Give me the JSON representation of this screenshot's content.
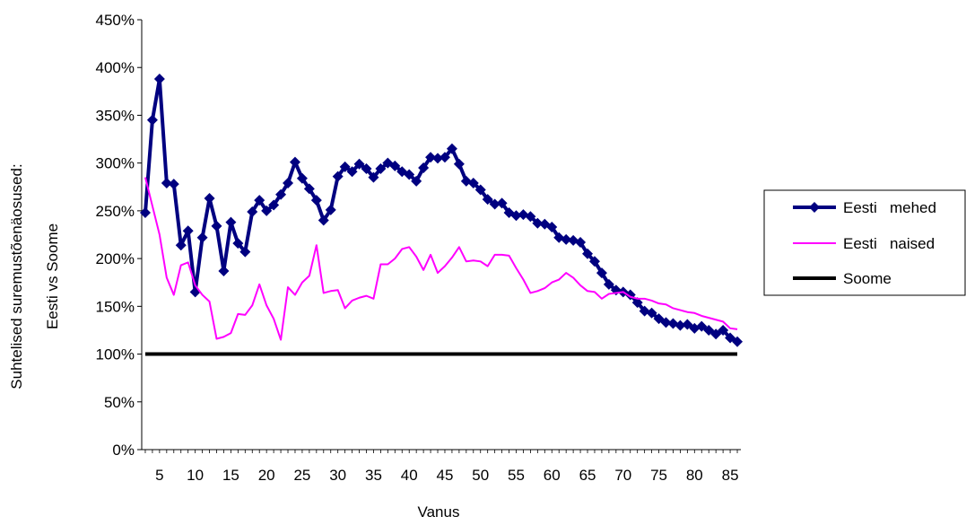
{
  "chart_data": {
    "type": "line",
    "xlabel": "Vanus",
    "ylabel_line1": "Suhtelised suremustõenäosused:",
    "ylabel_line2": "Eesti vs Soome",
    "x_ticks": [
      "5",
      "10",
      "15",
      "20",
      "25",
      "30",
      "35",
      "40",
      "45",
      "50",
      "55",
      "60",
      "65",
      "70",
      "75",
      "80",
      "85"
    ],
    "y_ticks": [
      "0%",
      "50%",
      "100%",
      "150%",
      "200%",
      "250%",
      "300%",
      "350%",
      "400%",
      "450%"
    ],
    "ylim": [
      0,
      4.5
    ],
    "xlim": [
      2.5,
      86.5
    ],
    "grid": false,
    "legend_position": "right",
    "x": [
      3,
      4,
      5,
      6,
      7,
      8,
      9,
      10,
      11,
      12,
      13,
      14,
      15,
      16,
      17,
      18,
      19,
      20,
      21,
      22,
      23,
      24,
      25,
      26,
      27,
      28,
      29,
      30,
      31,
      32,
      33,
      34,
      35,
      36,
      37,
      38,
      39,
      40,
      41,
      42,
      43,
      44,
      45,
      46,
      47,
      48,
      49,
      50,
      51,
      52,
      53,
      54,
      55,
      56,
      57,
      58,
      59,
      60,
      61,
      62,
      63,
      64,
      65,
      66,
      67,
      68,
      69,
      70,
      71,
      72,
      73,
      74,
      75,
      76,
      77,
      78,
      79,
      80,
      81,
      82,
      83,
      84,
      85,
      86
    ],
    "series": [
      {
        "name": "Eesti mehed",
        "color": "#000080",
        "marker": "diamond",
        "values": [
          2.48,
          3.45,
          3.88,
          2.79,
          2.78,
          2.14,
          2.29,
          1.65,
          2.22,
          2.63,
          2.34,
          1.87,
          2.38,
          2.16,
          2.07,
          2.49,
          2.61,
          2.5,
          2.56,
          2.67,
          2.79,
          3.01,
          2.84,
          2.73,
          2.61,
          2.4,
          2.51,
          2.86,
          2.96,
          2.91,
          2.99,
          2.94,
          2.85,
          2.94,
          3.0,
          2.97,
          2.91,
          2.88,
          2.81,
          2.95,
          3.06,
          3.05,
          3.06,
          3.15,
          2.99,
          2.81,
          2.79,
          2.72,
          2.62,
          2.57,
          2.58,
          2.48,
          2.45,
          2.46,
          2.44,
          2.37,
          2.36,
          2.33,
          2.22,
          2.2,
          2.19,
          2.17,
          2.05,
          1.97,
          1.85,
          1.73,
          1.67,
          1.65,
          1.62,
          1.54,
          1.45,
          1.43,
          1.37,
          1.33,
          1.32,
          1.3,
          1.31,
          1.27,
          1.29,
          1.25,
          1.21,
          1.25,
          1.17,
          1.13
        ]
      },
      {
        "name": "Eesti naised",
        "color": "#ff00ff",
        "marker": "none",
        "values": [
          2.85,
          2.55,
          2.25,
          1.8,
          1.62,
          1.93,
          1.96,
          1.72,
          1.62,
          1.55,
          1.16,
          1.18,
          1.22,
          1.42,
          1.41,
          1.51,
          1.73,
          1.51,
          1.37,
          1.15,
          1.7,
          1.62,
          1.75,
          1.82,
          2.14,
          1.64,
          1.66,
          1.67,
          1.48,
          1.56,
          1.59,
          1.61,
          1.58,
          1.94,
          1.94,
          2.0,
          2.1,
          2.12,
          2.02,
          1.88,
          2.04,
          1.85,
          1.92,
          2.01,
          2.12,
          1.97,
          1.98,
          1.97,
          1.92,
          2.04,
          2.04,
          2.03,
          1.9,
          1.78,
          1.64,
          1.66,
          1.69,
          1.75,
          1.78,
          1.85,
          1.8,
          1.72,
          1.66,
          1.65,
          1.58,
          1.63,
          1.64,
          1.65,
          1.6,
          1.58,
          1.58,
          1.56,
          1.53,
          1.52,
          1.48,
          1.46,
          1.44,
          1.43,
          1.4,
          1.38,
          1.36,
          1.34,
          1.27,
          1.26
        ]
      },
      {
        "name": "Soome",
        "color": "#000000",
        "marker": "none",
        "values": [
          1.0,
          1.0,
          1.0,
          1.0,
          1.0,
          1.0,
          1.0,
          1.0,
          1.0,
          1.0,
          1.0,
          1.0,
          1.0,
          1.0,
          1.0,
          1.0,
          1.0,
          1.0,
          1.0,
          1.0,
          1.0,
          1.0,
          1.0,
          1.0,
          1.0,
          1.0,
          1.0,
          1.0,
          1.0,
          1.0,
          1.0,
          1.0,
          1.0,
          1.0,
          1.0,
          1.0,
          1.0,
          1.0,
          1.0,
          1.0,
          1.0,
          1.0,
          1.0,
          1.0,
          1.0,
          1.0,
          1.0,
          1.0,
          1.0,
          1.0,
          1.0,
          1.0,
          1.0,
          1.0,
          1.0,
          1.0,
          1.0,
          1.0,
          1.0,
          1.0,
          1.0,
          1.0,
          1.0,
          1.0,
          1.0,
          1.0,
          1.0,
          1.0,
          1.0,
          1.0,
          1.0,
          1.0,
          1.0,
          1.0,
          1.0,
          1.0,
          1.0,
          1.0,
          1.0,
          1.0,
          1.0,
          1.0,
          1.0,
          1.0
        ]
      }
    ],
    "legend": [
      {
        "label": "Eesti   mehed",
        "series": 0
      },
      {
        "label": "Eesti   naised",
        "series": 1
      },
      {
        "label": "Soome",
        "series": 2
      }
    ]
  }
}
